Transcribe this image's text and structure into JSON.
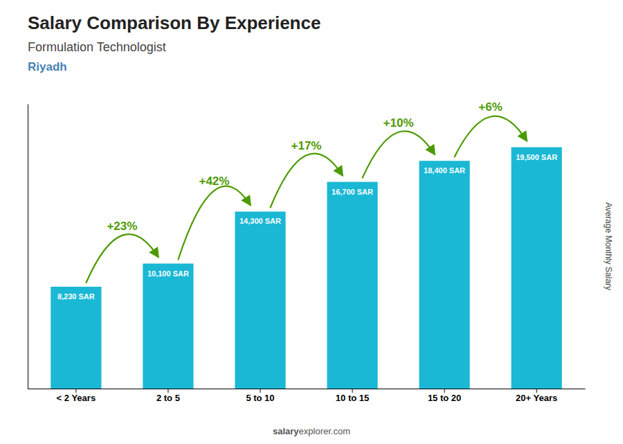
{
  "chart_data": {
    "type": "bar",
    "title": "Salary Comparison By Experience",
    "subtitle": "Formulation Technologist",
    "y_label": "Average Monthly Salary",
    "categories": [
      "< 2 Years",
      "2 to 5",
      "5 to 10",
      "10 to 15",
      "15 to 20",
      "20+ Years"
    ],
    "values": [
      8230,
      10100,
      14300,
      16700,
      18400,
      19500
    ],
    "value_labels": [
      "8,230 SAR",
      "10,100 SAR",
      "14,300 SAR",
      "16,700 SAR",
      "18,400 SAR",
      "19,500 SAR"
    ],
    "data_labels": true,
    "color": "#1ab8d4",
    "ylim": [
      0,
      23000
    ],
    "yticks": [],
    "tick_labels": "x",
    "grid": false,
    "annotations": [
      {
        "text": "Riyadh"
      },
      {
        "text": "+23%",
        "from": 0,
        "to": 1
      },
      {
        "text": "+42%",
        "from": 1,
        "to": 2
      },
      {
        "text": "+17%",
        "from": 2,
        "to": 3
      },
      {
        "text": "+10%",
        "from": 3,
        "to": 4
      },
      {
        "text": "+6%",
        "from": 4,
        "to": 5
      },
      {
        "text": "salary"
      },
      {
        "text": "explorer.com"
      }
    ]
  }
}
